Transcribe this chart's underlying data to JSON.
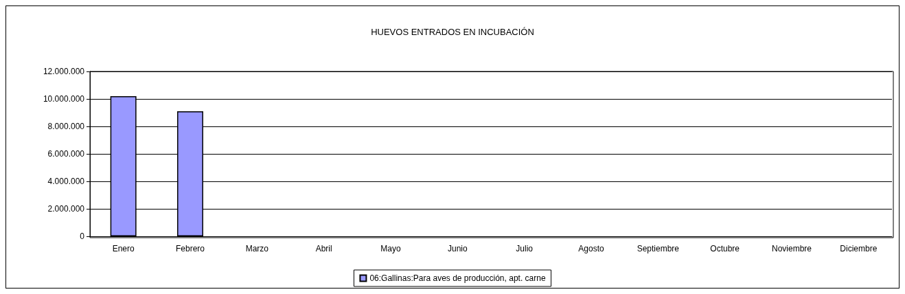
{
  "chart_data": {
    "type": "bar",
    "title": "HUEVOS ENTRADOS EN INCUBACIÓN",
    "categories": [
      "Enero",
      "Febrero",
      "Marzo",
      "Abril",
      "Mayo",
      "Junio",
      "Julio",
      "Agosto",
      "Septiembre",
      "Octubre",
      "Noviembre",
      "Diciembre"
    ],
    "series": [
      {
        "name": "06:Gallinas:Para aves de producción, apt. carne",
        "color": "#9999ff",
        "values": [
          10200000,
          9100000,
          null,
          null,
          null,
          null,
          null,
          null,
          null,
          null,
          null,
          null
        ]
      }
    ],
    "ylim": [
      0,
      12000000
    ],
    "yticks": [
      0,
      {
        "value": 2000000,
        "label": "2.000.000"
      },
      {
        "value": 4000000,
        "label": "4.000.000"
      },
      {
        "value": 6000000,
        "label": "6.000.000"
      },
      {
        "value": 8000000,
        "label": "8.000.000"
      },
      {
        "value": 10000000,
        "label": "10.000.000"
      },
      {
        "value": 12000000,
        "label": "12.000.000"
      }
    ],
    "grid": "y",
    "legend": "bottom"
  }
}
